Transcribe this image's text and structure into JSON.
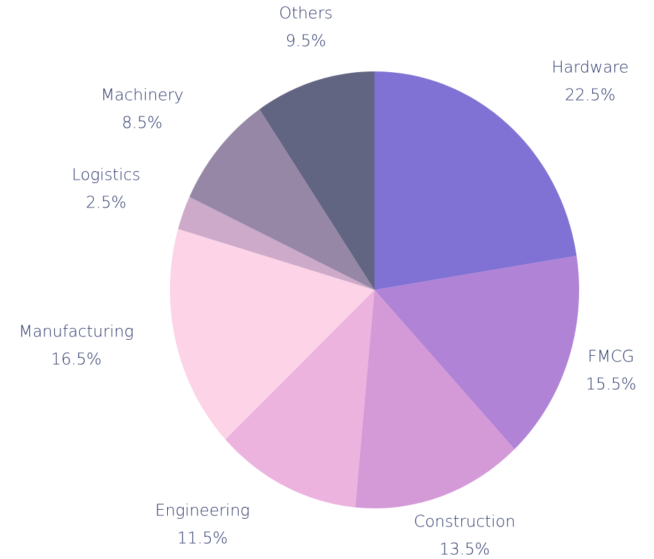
{
  "chart_data": {
    "type": "pie",
    "categories": [
      "Hardware",
      "FMCG",
      "Construction",
      "Engineering",
      "Manufacturing",
      "Logistics",
      "Machinery",
      "Others"
    ],
    "values": [
      22.5,
      15.5,
      13.5,
      11.5,
      16.5,
      2.5,
      8.5,
      9.5
    ],
    "value_labels": [
      "22.5%",
      "15.5%",
      "13.5%",
      "11.5%",
      "16.5%",
      "2.5%",
      "8.5%",
      "9.5%"
    ],
    "colors": [
      "#7f72d4",
      "#b083d6",
      "#d49ad8",
      "#ebb3de",
      "#fcd3e7",
      "#cdaac9",
      "#9787a6",
      "#616582"
    ]
  }
}
